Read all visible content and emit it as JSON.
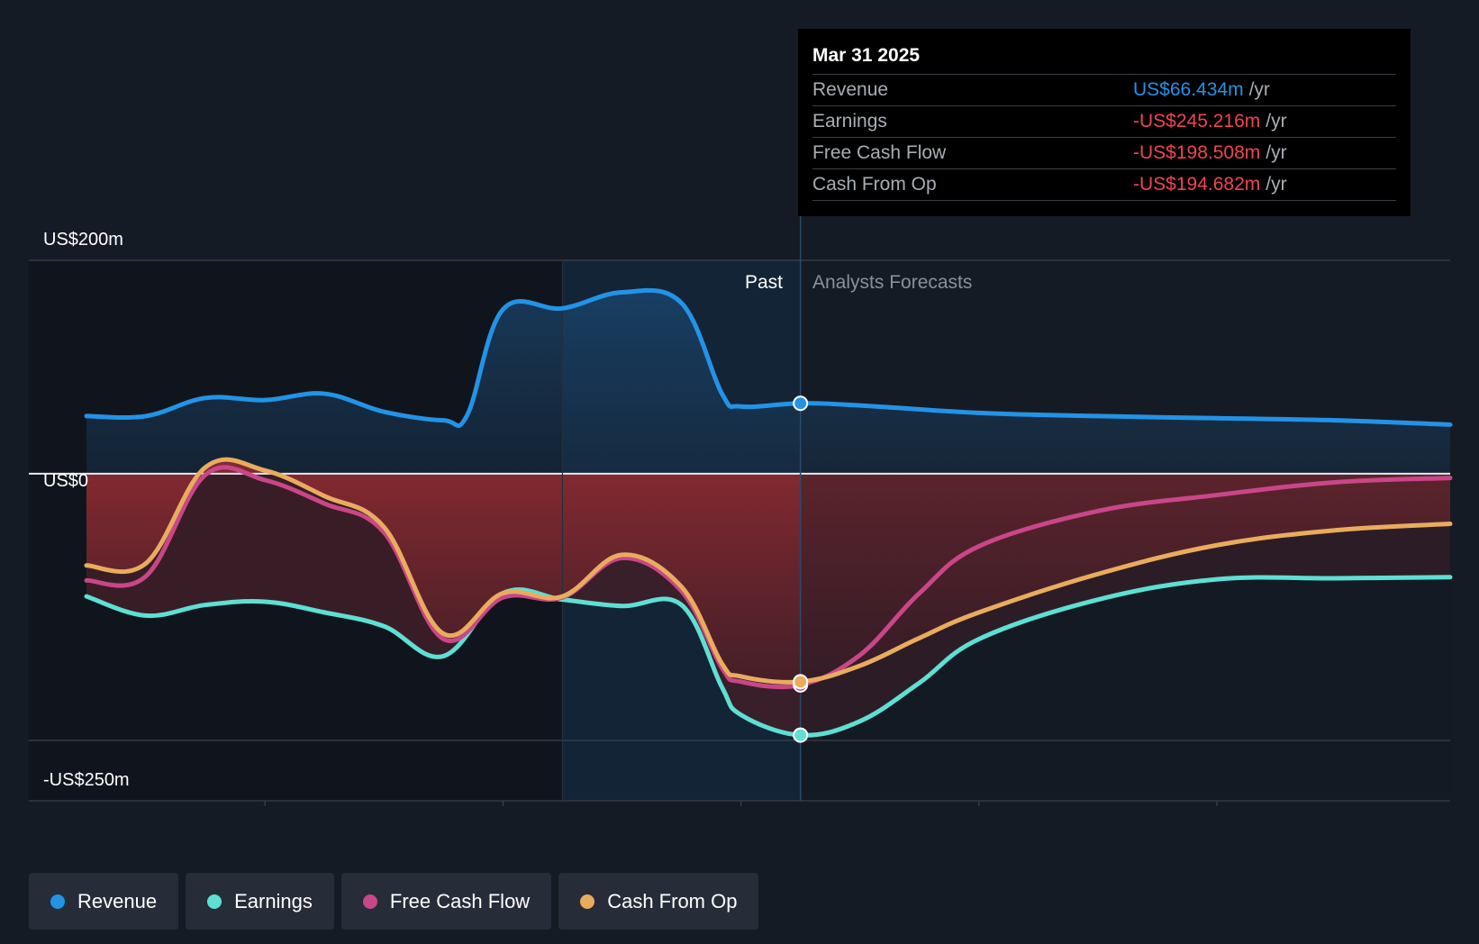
{
  "colors": {
    "revenue": "#2393e6",
    "earnings": "#5de0d3",
    "free_cash_flow": "#c94688",
    "cash_from_op": "#e9ac5d",
    "negative_text": "#f04452",
    "background": "#151b24"
  },
  "labels": {
    "y_top": "US$200m",
    "y_zero": "US$0",
    "y_bottom": "-US$250m",
    "past": "Past",
    "forecast": "Analysts Forecasts"
  },
  "tooltip": {
    "date": "Mar 31 2025",
    "rows": [
      {
        "name": "Revenue",
        "value": "US$66.434m",
        "unit": "/yr",
        "color": "#2393e6"
      },
      {
        "name": "Earnings",
        "value": "-US$245.216m",
        "unit": "/yr",
        "color": "#f04452"
      },
      {
        "name": "Free Cash Flow",
        "value": "-US$198.508m",
        "unit": "/yr",
        "color": "#f04452"
      },
      {
        "name": "Cash From Op",
        "value": "-US$194.682m",
        "unit": "/yr",
        "color": "#f04452"
      }
    ]
  },
  "legend": [
    {
      "label": "Revenue",
      "color": "#2393e6"
    },
    {
      "label": "Earnings",
      "color": "#5de0d3"
    },
    {
      "label": "Free Cash Flow",
      "color": "#c94688"
    },
    {
      "label": "Cash From Op",
      "color": "#e9ac5d"
    }
  ],
  "chart_data": {
    "type": "line",
    "x_ticks": [
      "2023",
      "2024",
      "2025",
      "2026",
      "2027"
    ],
    "xlim": [
      2022.25,
      2027.98
    ],
    "ylim": [
      -250,
      200
    ],
    "y_ticks": [
      200,
      0,
      -250
    ],
    "past_end": 2025.25,
    "highlight_start": 2024.25,
    "series": [
      {
        "name": "Revenue",
        "x": [
          2022.25,
          2022.5,
          2022.75,
          2023.0,
          2023.25,
          2023.5,
          2023.75,
          2023.85,
          2024.0,
          2024.25,
          2024.5,
          2024.75,
          2024.92,
          2025.0,
          2025.25,
          2025.5,
          2026.0,
          2026.5,
          2027.0,
          2027.5,
          2027.98
        ],
        "y": [
          54,
          54,
          71,
          69,
          75,
          58,
          50,
          55,
          154,
          155,
          170,
          160,
          75,
          63,
          66,
          64,
          57,
          54,
          52,
          50,
          46
        ]
      },
      {
        "name": "Earnings",
        "x": [
          2022.25,
          2022.5,
          2022.75,
          2023.0,
          2023.25,
          2023.5,
          2023.75,
          2024.0,
          2024.25,
          2024.5,
          2024.75,
          2024.92,
          2025.0,
          2025.25,
          2025.5,
          2025.75,
          2026.0,
          2026.5,
          2027.0,
          2027.5,
          2027.98
        ],
        "y": [
          -115,
          -133,
          -123,
          -120,
          -130,
          -143,
          -171,
          -112,
          -118,
          -124,
          -123,
          -200,
          -226,
          -245,
          -232,
          -196,
          -155,
          -118,
          -99,
          -98,
          -97
        ]
      },
      {
        "name": "Free Cash Flow",
        "x": [
          2022.25,
          2022.5,
          2022.75,
          2023.0,
          2023.25,
          2023.5,
          2023.75,
          2024.0,
          2024.25,
          2024.5,
          2024.75,
          2024.92,
          2025.0,
          2025.25,
          2025.5,
          2025.75,
          2026.0,
          2026.5,
          2027.0,
          2027.5,
          2027.98
        ],
        "y": [
          -100,
          -96,
          -1,
          -6,
          -28,
          -55,
          -155,
          -116,
          -116,
          -79,
          -110,
          -182,
          -195,
          -198,
          -170,
          -112,
          -68,
          -35,
          -20,
          -8,
          -4
        ]
      },
      {
        "name": "Cash From Op",
        "x": [
          2022.25,
          2022.5,
          2022.75,
          2023.0,
          2023.25,
          2023.5,
          2023.75,
          2024.0,
          2024.25,
          2024.5,
          2024.75,
          2024.92,
          2025.0,
          2025.25,
          2025.5,
          2025.75,
          2026.0,
          2026.5,
          2027.0,
          2027.5,
          2027.98
        ],
        "y": [
          -86,
          -84,
          6,
          3,
          -21,
          -50,
          -150,
          -112,
          -115,
          -76,
          -106,
          -178,
          -190,
          -195,
          -180,
          -154,
          -130,
          -94,
          -67,
          -53,
          -47
        ]
      }
    ]
  }
}
